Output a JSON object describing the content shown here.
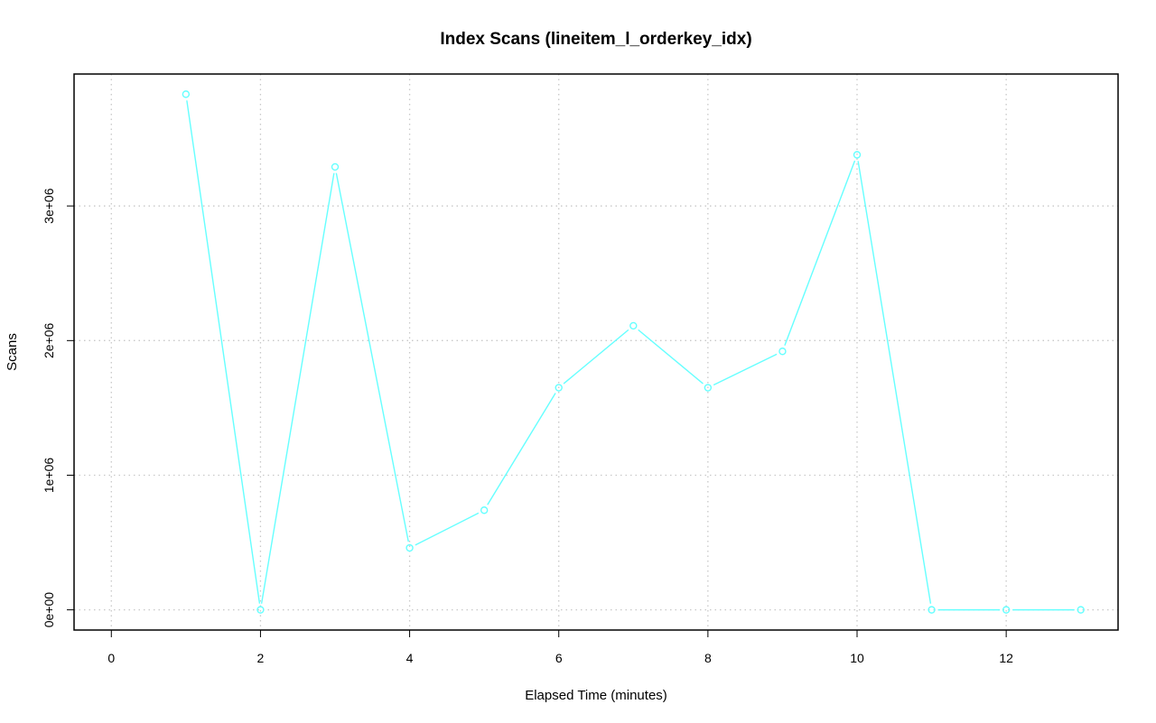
{
  "chart_data": {
    "type": "line",
    "title": "Index Scans (lineitem_l_orderkey_idx)",
    "xlabel": "Elapsed Time (minutes)",
    "ylabel": "Scans",
    "xlim": [
      -0.5,
      13.5
    ],
    "ylim": [
      -150000,
      3980000
    ],
    "x_ticks": [
      0,
      2,
      4,
      6,
      8,
      10,
      12
    ],
    "x_tick_labels": [
      "0",
      "2",
      "4",
      "6",
      "8",
      "10",
      "12"
    ],
    "y_ticks": [
      0,
      1000000,
      2000000,
      3000000
    ],
    "y_tick_labels": [
      "0e+00",
      "1e+06",
      "2e+06",
      "3e+06"
    ],
    "grid": true,
    "series": [
      {
        "color": "#66ffff",
        "marker": "open-circle",
        "x": [
          1,
          2,
          3,
          4,
          5,
          6,
          7,
          8,
          9,
          10,
          11,
          12,
          13
        ],
        "y": [
          3830000,
          0,
          3290000,
          460000,
          740000,
          1650000,
          2110000,
          1650000,
          1920000,
          3380000,
          0,
          0,
          0
        ]
      }
    ]
  }
}
